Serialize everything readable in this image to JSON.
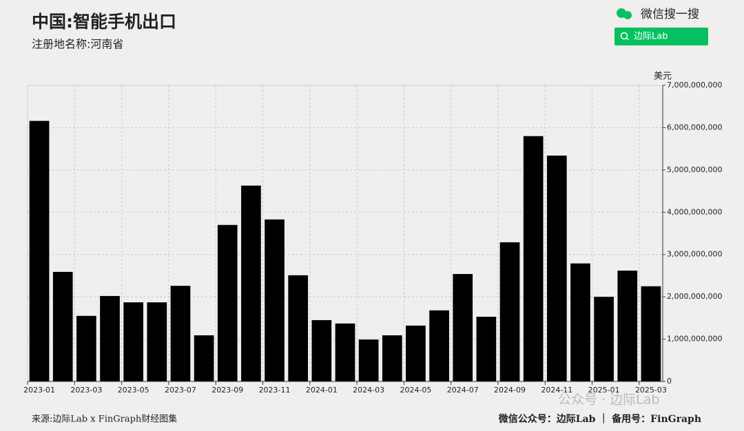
{
  "chart_data": {
    "type": "bar",
    "title": "中国:智能手机出口",
    "subtitle": "注册地名称:河南省",
    "y_label": "美元",
    "categories": [
      "2023-01",
      null,
      "2023-03",
      null,
      "2023-05",
      null,
      "2023-07",
      null,
      "2023-09",
      null,
      "2023-11",
      null,
      "2024-01",
      null,
      "2024-03",
      null,
      "2024-05",
      null,
      "2024-07",
      null,
      "2024-09",
      null,
      "2024-11",
      null,
      "2025-01",
      null,
      "2025-03"
    ],
    "values": [
      6160000000,
      2590000000,
      1550000000,
      2020000000,
      1870000000,
      1870000000,
      2260000000,
      1090000000,
      3700000000,
      4630000000,
      3830000000,
      2510000000,
      1450000000,
      1370000000,
      990000000,
      1090000000,
      1320000000,
      1680000000,
      2540000000,
      1530000000,
      3290000000,
      5800000000,
      5340000000,
      2790000000,
      2000000000,
      2620000000,
      2250000000
    ],
    "color": "#000000",
    "ylim": [
      0,
      7000000000
    ],
    "yticks": [
      0,
      {
        "value": 1000000000,
        "label": "1,000,000,000"
      },
      {
        "value": 2000000000,
        "label": "2,000,000,000"
      },
      {
        "value": 3000000000,
        "label": "3,000,000,000"
      },
      {
        "value": 4000000000,
        "label": "4,000,000,000"
      },
      {
        "value": 5000000000,
        "label": "5,000,000,000"
      },
      {
        "value": 6000000000,
        "label": "6,000,000,000"
      },
      {
        "value": 7000000000,
        "label": "7,000,000,000"
      }
    ],
    "grid": true
  },
  "branding": {
    "search": "微信搜一搜",
    "search_button": "边际Lab",
    "watermark": "公众号 · 边际Lab"
  },
  "footer": {
    "source": "来源:边际Lab x FinGraph财经图集",
    "accounts": "微信公众号：边际Lab ｜ 备用号：FinGraph"
  }
}
